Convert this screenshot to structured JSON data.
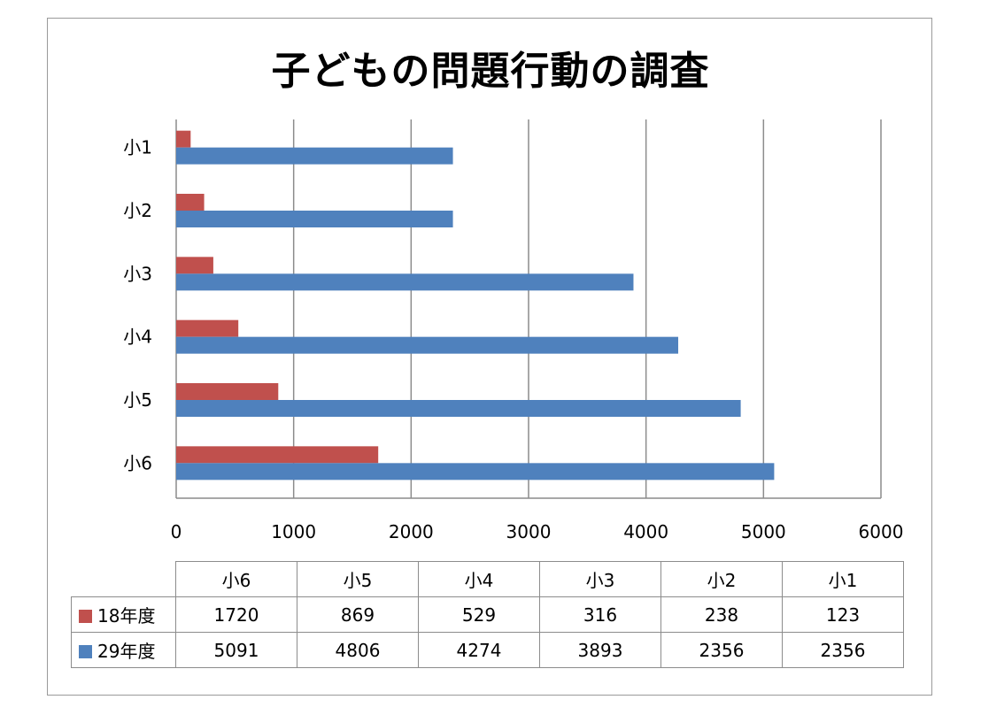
{
  "chart_data": {
    "type": "bar",
    "orientation": "horizontal",
    "title": "子どもの問題行動の調査",
    "categories": [
      "小6",
      "小5",
      "小4",
      "小3",
      "小2",
      "小1"
    ],
    "series": [
      {
        "name": "18年度",
        "color": "#c0504d",
        "values": [
          1720,
          869,
          529,
          316,
          238,
          123
        ]
      },
      {
        "name": "29年度",
        "color": "#4f81bd",
        "values": [
          5091,
          4806,
          4274,
          3893,
          2356,
          2356
        ]
      }
    ],
    "xlim": [
      0,
      6000
    ],
    "xticks": [
      0,
      1000,
      2000,
      3000,
      4000,
      5000,
      6000
    ],
    "grid": true,
    "legend": "data-table"
  }
}
